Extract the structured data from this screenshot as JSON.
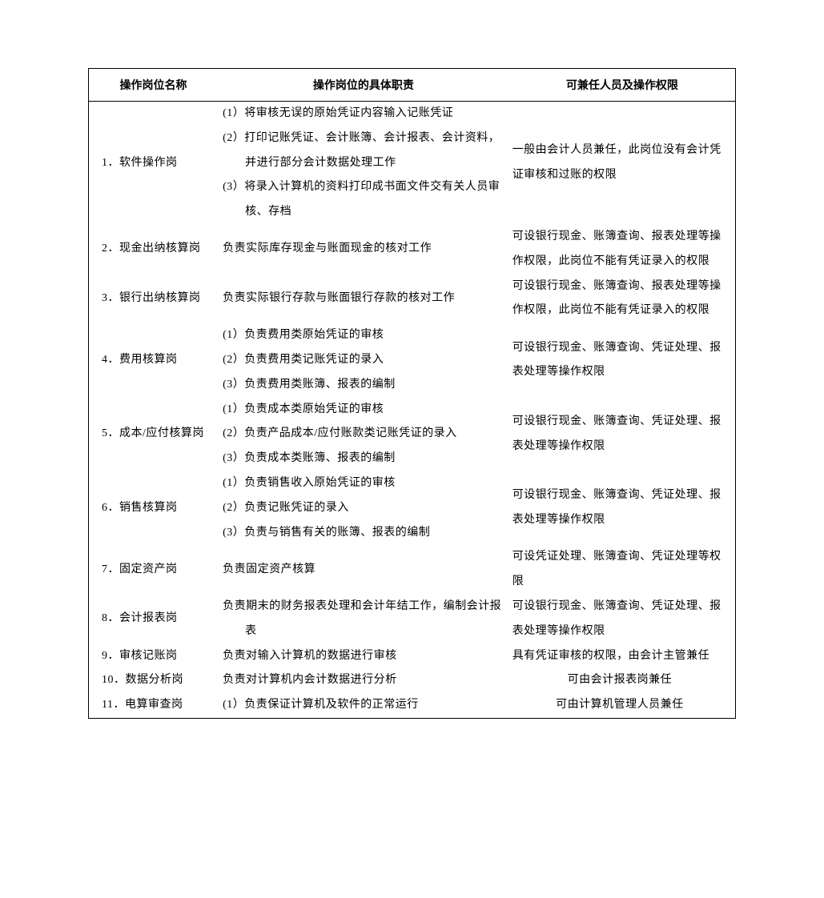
{
  "table": {
    "columns": [
      "操作岗位名称",
      "操作岗位的具体职责",
      "可兼任人员及操作权限"
    ],
    "col_widths": [
      "20%",
      "45%",
      "35%"
    ],
    "rows": [
      {
        "name": "1．软件操作岗",
        "duties": [
          "(1）将审核无误的原始凭证内容输入记账凭证",
          "(2）打印记账凭证、会计账簿、会计报表、会计资料，并进行部分会计数据处理工作",
          "(3）将录入计算机的资料打印成书面文件交有关人员审核、存档"
        ],
        "perm": "一般由会计人员兼任，此岗位没有会计凭证审核和过账的权限"
      },
      {
        "name": "2．现金出纳核算岗",
        "duties": [
          "负责实际库存现金与账面现金的核对工作"
        ],
        "perm": "可设银行现金、账簿查询、报表处理等操作权限，此岗位不能有凭证录入的权限"
      },
      {
        "name": "3．银行出纳核算岗",
        "duties": [
          "负责实际银行存款与账面银行存款的核对工作"
        ],
        "perm": "可设银行现金、账簿查询、报表处理等操作权限，此岗位不能有凭证录入的权限"
      },
      {
        "name": "4．费用核算岗",
        "duties": [
          "(1）负责费用类原始凭证的审核",
          "(2）负责费用类记账凭证的录入",
          "(3）负责费用类账簿、报表的编制"
        ],
        "perm": "可设银行现金、账簿查询、凭证处理、报表处理等操作权限"
      },
      {
        "name": "5．成本/应付核算岗",
        "duties": [
          "(1）负责成本类原始凭证的审核",
          "(2）负责产品成本/应付账款类记账凭证的录入",
          "(3）负责成本类账簿、报表的编制"
        ],
        "perm": "可设银行现金、账簿查询、凭证处理、报表处理等操作权限"
      },
      {
        "name": "6．销售核算岗",
        "duties": [
          "(1）负责销售收入原始凭证的审核",
          "(2）负责记账凭证的录入",
          "(3）负责与销售有关的账簿、报表的编制"
        ],
        "perm": "可设银行现金、账簿查询、凭证处理、报表处理等操作权限"
      },
      {
        "name": "7．固定资产岗",
        "duties": [
          "负责固定资产核算"
        ],
        "perm": "可设凭证处理、账簿查询、凭证处理等权限"
      },
      {
        "name": "8．会计报表岗",
        "duties": [
          "负责期末的财务报表处理和会计年结工作，编制会计报表"
        ],
        "perm": "可设银行现金、账簿查询、凭证处理、报表处理等操作权限"
      },
      {
        "name": "9．审核记账岗",
        "duties": [
          "负责对输入计算机的数据进行审核"
        ],
        "perm": "具有凭证审核的权限，由会计主管兼任"
      },
      {
        "name": "10．数据分析岗",
        "duties": [
          "负责对计算机内会计数据进行分析"
        ],
        "perm": "可由会计报表岗兼任",
        "perm_center": true
      },
      {
        "name": "11．电算审查岗",
        "duties": [
          "(1）负责保证计算机及软件的正常运行"
        ],
        "perm": "可由计算机管理人员兼任",
        "perm_center": true
      }
    ]
  },
  "style": {
    "background_color": "#ffffff",
    "text_color": "#000000",
    "border_color": "#000000",
    "font_size": 14,
    "line_height": 2.2
  }
}
